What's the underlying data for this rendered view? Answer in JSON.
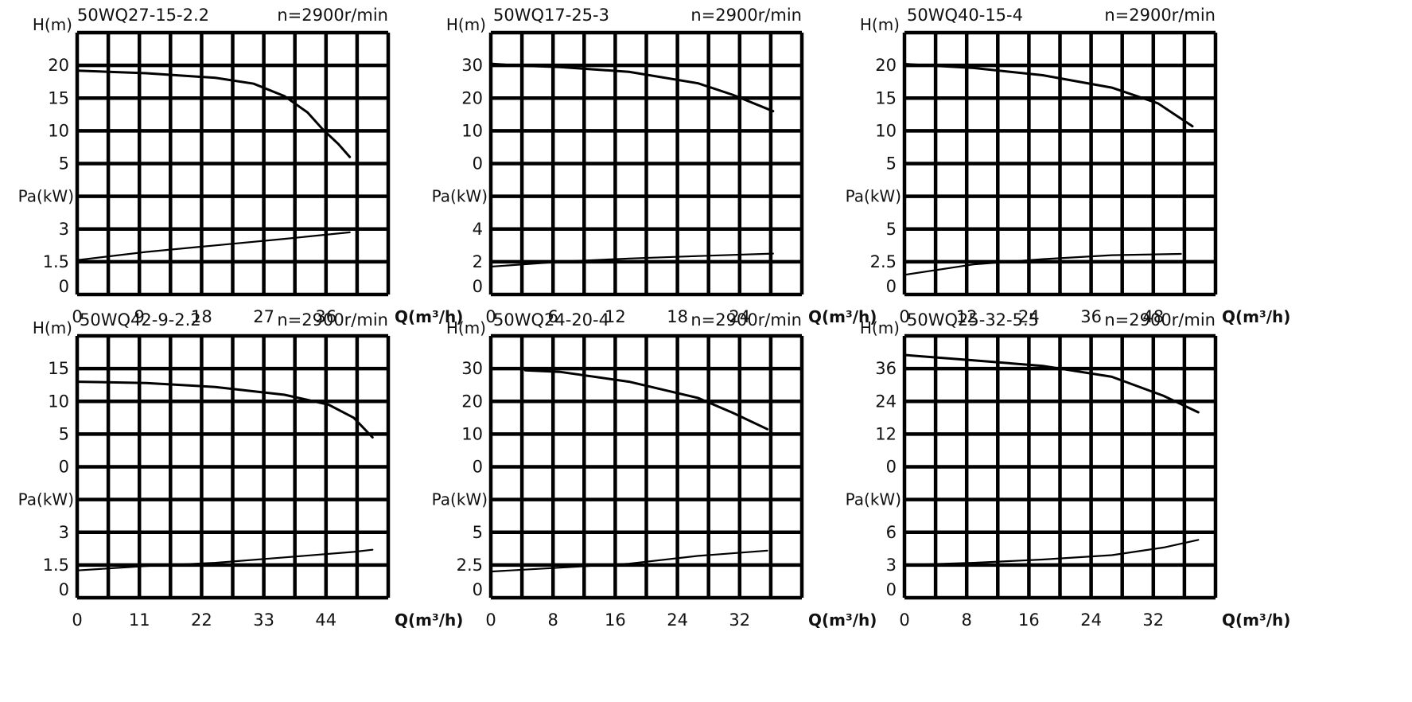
{
  "chart_data": [
    {
      "type": "line",
      "model": "50WQ27-15-2.2",
      "speed": "n=2900r/min",
      "h_axis_label": "H(m)",
      "p_axis_label": "Pa(kW)",
      "x_axis_label": "Q(m³/h)",
      "x_ticks": [
        "0",
        "9",
        "18",
        "27",
        "36"
      ],
      "xlim": [
        0,
        40.5
      ],
      "h_ticks": [
        "20",
        "15",
        "10",
        "5"
      ],
      "hlim": [
        0,
        20
      ],
      "p_ticks": [
        "3",
        "1.5",
        "0"
      ],
      "plim": [
        0,
        3
      ],
      "series": [
        {
          "values": [
            [
              0,
              19.2
            ],
            [
              9,
              18.8
            ],
            [
              18,
              18.1
            ],
            [
              23,
              17.2
            ],
            [
              27,
              15.3
            ],
            [
              30,
              12.8
            ],
            [
              32,
              10.2
            ],
            [
              34,
              8.0
            ],
            [
              35.5,
              6.0
            ]
          ]
        },
        {
          "values": [
            [
              0,
              1.05
            ],
            [
              9,
              1.3
            ],
            [
              18,
              1.5
            ],
            [
              27,
              1.7
            ],
            [
              35.5,
              1.9
            ]
          ]
        }
      ]
    },
    {
      "type": "line",
      "model": "50WQ17-25-3",
      "speed": "n=2900r/min",
      "h_axis_label": "H(m)",
      "p_axis_label": "Pa(kW)",
      "x_axis_label": "Q(m³/h)",
      "x_ticks": [
        "0",
        "6",
        "12",
        "18",
        "24"
      ],
      "xlim": [
        0,
        27
      ],
      "h_ticks": [
        "30",
        "20",
        "10",
        "0"
      ],
      "hlim": [
        -10,
        30
      ],
      "p_ticks": [
        "4",
        "2",
        "0"
      ],
      "plim": [
        0,
        6
      ],
      "series": [
        {
          "values": [
            [
              0,
              30.5
            ],
            [
              2,
              30.0
            ],
            [
              6,
              29.5
            ],
            [
              12,
              28.0
            ],
            [
              18,
              24.5
            ],
            [
              21,
              21.0
            ],
            [
              24.5,
              16.0
            ]
          ]
        },
        {
          "values": [
            [
              0,
              1.7
            ],
            [
              6,
              2.0
            ],
            [
              12,
              2.2
            ],
            [
              18,
              2.35
            ],
            [
              24.5,
              2.5
            ]
          ]
        }
      ]
    },
    {
      "type": "line",
      "model": "50WQ40-15-4",
      "speed": "n=2900r/min",
      "h_axis_label": "H(m)",
      "p_axis_label": "Pa(kW)",
      "x_axis_label": "Q(m³/h)",
      "x_ticks": [
        "0",
        "12",
        "24",
        "36",
        "48"
      ],
      "xlim": [
        0,
        54
      ],
      "h_ticks": [
        "20",
        "15",
        "10",
        "5"
      ],
      "hlim": [
        0,
        20
      ],
      "p_ticks": [
        "5",
        "2.5",
        "0"
      ],
      "plim": [
        0,
        7.5
      ],
      "series": [
        {
          "values": [
            [
              0,
              20.2
            ],
            [
              12,
              19.6
            ],
            [
              24,
              18.5
            ],
            [
              36,
              16.6
            ],
            [
              44,
              14.2
            ],
            [
              50,
              10.7
            ]
          ]
        },
        {
          "values": [
            [
              0,
              1.5
            ],
            [
              12,
              2.3
            ],
            [
              24,
              2.7
            ],
            [
              36,
              3.0
            ],
            [
              48,
              3.1
            ]
          ]
        }
      ]
    },
    {
      "type": "line",
      "model": "50WQ42-9-2.2",
      "speed": "n=2900r/min",
      "h_axis_label": "H(m)",
      "p_axis_label": "Pa(kW)",
      "x_axis_label": "Q(m³/h)",
      "x_ticks": [
        "0",
        "11",
        "22",
        "33",
        "44"
      ],
      "xlim": [
        0,
        49.5
      ],
      "h_ticks": [
        "15",
        "10",
        "5",
        "0"
      ],
      "hlim": [
        -5,
        15
      ],
      "p_ticks": [
        "3",
        "1.5",
        "0"
      ],
      "plim": [
        0,
        4.5
      ],
      "series": [
        {
          "values": [
            [
              0,
              13.0
            ],
            [
              11,
              12.8
            ],
            [
              22,
              12.2
            ],
            [
              33,
              11.0
            ],
            [
              40,
              9.5
            ],
            [
              44,
              7.5
            ],
            [
              47,
              4.5
            ]
          ]
        },
        {
          "values": [
            [
              0,
              1.25
            ],
            [
              11,
              1.45
            ],
            [
              22,
              1.6
            ],
            [
              33,
              1.85
            ],
            [
              44,
              2.1
            ],
            [
              47,
              2.2
            ]
          ]
        }
      ]
    },
    {
      "type": "line",
      "model": "50WQ24-20-4",
      "speed": "n=2900r/min",
      "h_axis_label": "H(m)",
      "p_axis_label": "Pa(kW)",
      "x_axis_label": "Q(m³/h)",
      "x_ticks": [
        "0",
        "8",
        "16",
        "24",
        "32"
      ],
      "xlim": [
        0,
        36
      ],
      "h_ticks": [
        "30",
        "20",
        "10",
        "0"
      ],
      "hlim": [
        -10,
        30
      ],
      "p_ticks": [
        "5",
        "2.5",
        "0"
      ],
      "plim": [
        0,
        7.5
      ],
      "series": [
        {
          "values": [
            [
              4,
              29.5
            ],
            [
              8,
              29.0
            ],
            [
              16,
              26.0
            ],
            [
              24,
              21.0
            ],
            [
              28,
              16.5
            ],
            [
              32,
              11.5
            ]
          ]
        },
        {
          "values": [
            [
              0,
              2.0
            ],
            [
              8,
              2.3
            ],
            [
              16,
              2.6
            ],
            [
              24,
              3.2
            ],
            [
              32,
              3.6
            ]
          ]
        }
      ]
    },
    {
      "type": "line",
      "model": "50WQ25-32-5.5",
      "speed": "n=2900r/min",
      "h_axis_label": "H(m)",
      "p_axis_label": "Pa(kW)",
      "x_axis_label": "Q(m³/h)",
      "x_ticks": [
        "0",
        "8",
        "16",
        "24",
        "32"
      ],
      "xlim": [
        0,
        36
      ],
      "h_ticks": [
        "36",
        "24",
        "12",
        "0"
      ],
      "hlim": [
        -12,
        36
      ],
      "p_ticks": [
        "6",
        "3",
        "0"
      ],
      "plim": [
        0,
        9
      ],
      "series": [
        {
          "values": [
            [
              0,
              41.0
            ],
            [
              8,
              39.0
            ],
            [
              16,
              37.0
            ],
            [
              24,
              33.0
            ],
            [
              30,
              26.0
            ],
            [
              34,
              20.0
            ]
          ]
        },
        {
          "values": [
            [
              0,
              3.0
            ],
            [
              8,
              3.2
            ],
            [
              16,
              3.5
            ],
            [
              24,
              3.9
            ],
            [
              30,
              4.6
            ],
            [
              34,
              5.3
            ]
          ]
        }
      ]
    }
  ]
}
